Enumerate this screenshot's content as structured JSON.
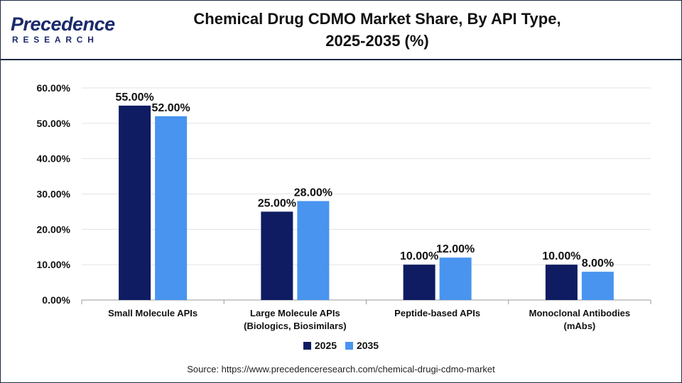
{
  "brand": {
    "name": "Precedence",
    "sub": "RESEARCH"
  },
  "title_line1": "Chemical Drug CDMO Market Share, By API Type,",
  "title_line2": "2025-2035 (%)",
  "source": "Source: https://www.precedenceresearch.com/chemical-drugi-cdmo-market",
  "colors": {
    "s2025": "#0f1c62",
    "s2035": "#4894ef",
    "grid": "#e3e3e3",
    "axis": "#9a9a9a"
  },
  "chart_data": {
    "type": "bar",
    "categories": [
      [
        "Small Molecule APIs"
      ],
      [
        "Large Molecule APIs",
        "(Biologics, Biosimilars)"
      ],
      [
        "Peptide-based APIs"
      ],
      [
        "Monoclonal Antibodies",
        "(mAbs)"
      ]
    ],
    "series": [
      {
        "name": "2025",
        "values": [
          55.0,
          25.0,
          10.0,
          10.0
        ],
        "labels": [
          "55.00%",
          "25.00%",
          "10.00%",
          "10.00%"
        ]
      },
      {
        "name": "2035",
        "values": [
          52.0,
          28.0,
          12.0,
          8.0
        ],
        "labels": [
          "52.00%",
          "28.00%",
          "12.00%",
          "8.00%"
        ]
      }
    ],
    "ylim": [
      0,
      60
    ],
    "yticks": [
      "0.00%",
      "10.00%",
      "20.00%",
      "30.00%",
      "40.00%",
      "50.00%",
      "60.00%"
    ],
    "grid": true,
    "legend_position": "bottom-center"
  }
}
